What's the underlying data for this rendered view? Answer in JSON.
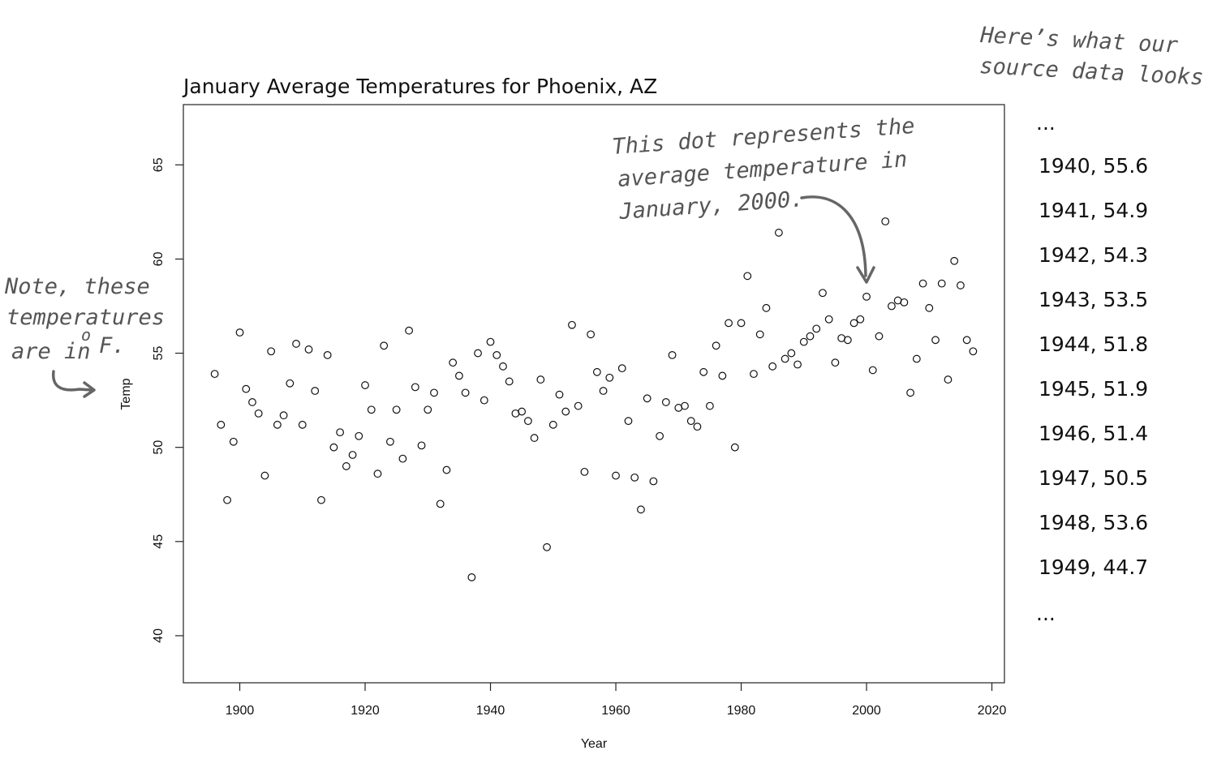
{
  "chart_data": {
    "type": "scatter",
    "title": "January Average Temperatures for Phoenix, AZ",
    "xlabel": "Year",
    "ylabel": "Temp",
    "xlim": [
      1891,
      2022
    ],
    "ylim": [
      37.5,
      68.2
    ],
    "xticks": [
      1900,
      1920,
      1940,
      1960,
      1980,
      2000,
      2020
    ],
    "yticks": [
      40,
      45,
      50,
      55,
      60,
      65
    ],
    "grid": false,
    "series": [
      {
        "marker": "open-circle",
        "points": [
          [
            1896,
            53.9
          ],
          [
            1897,
            51.2
          ],
          [
            1898,
            47.2
          ],
          [
            1899,
            50.3
          ],
          [
            1900,
            56.1
          ],
          [
            1901,
            53.1
          ],
          [
            1902,
            52.4
          ],
          [
            1903,
            51.8
          ],
          [
            1904,
            48.5
          ],
          [
            1905,
            55.1
          ],
          [
            1906,
            51.2
          ],
          [
            1907,
            51.7
          ],
          [
            1908,
            53.4
          ],
          [
            1909,
            55.5
          ],
          [
            1910,
            51.2
          ],
          [
            1911,
            55.2
          ],
          [
            1912,
            53.0
          ],
          [
            1913,
            47.2
          ],
          [
            1914,
            54.9
          ],
          [
            1915,
            50.0
          ],
          [
            1916,
            50.8
          ],
          [
            1917,
            49.0
          ],
          [
            1918,
            49.6
          ],
          [
            1919,
            50.6
          ],
          [
            1920,
            53.3
          ],
          [
            1921,
            52.0
          ],
          [
            1922,
            48.6
          ],
          [
            1923,
            55.4
          ],
          [
            1924,
            50.3
          ],
          [
            1925,
            52.0
          ],
          [
            1926,
            49.4
          ],
          [
            1927,
            56.2
          ],
          [
            1928,
            53.2
          ],
          [
            1929,
            50.1
          ],
          [
            1930,
            52.0
          ],
          [
            1931,
            52.9
          ],
          [
            1932,
            47.0
          ],
          [
            1933,
            48.8
          ],
          [
            1934,
            54.5
          ],
          [
            1935,
            53.8
          ],
          [
            1936,
            52.9
          ],
          [
            1937,
            43.1
          ],
          [
            1938,
            55.0
          ],
          [
            1939,
            52.5
          ],
          [
            1940,
            55.6
          ],
          [
            1941,
            54.9
          ],
          [
            1942,
            54.3
          ],
          [
            1943,
            53.5
          ],
          [
            1944,
            51.8
          ],
          [
            1945,
            51.9
          ],
          [
            1946,
            51.4
          ],
          [
            1947,
            50.5
          ],
          [
            1948,
            53.6
          ],
          [
            1949,
            44.7
          ],
          [
            1950,
            51.2
          ],
          [
            1951,
            52.8
          ],
          [
            1952,
            51.9
          ],
          [
            1953,
            56.5
          ],
          [
            1954,
            52.2
          ],
          [
            1955,
            48.7
          ],
          [
            1956,
            56.0
          ],
          [
            1957,
            54.0
          ],
          [
            1958,
            53.0
          ],
          [
            1959,
            53.7
          ],
          [
            1960,
            48.5
          ],
          [
            1961,
            54.2
          ],
          [
            1962,
            51.4
          ],
          [
            1963,
            48.4
          ],
          [
            1964,
            46.7
          ],
          [
            1965,
            52.6
          ],
          [
            1966,
            48.2
          ],
          [
            1967,
            50.6
          ],
          [
            1968,
            52.4
          ],
          [
            1969,
            54.9
          ],
          [
            1970,
            52.1
          ],
          [
            1971,
            52.2
          ],
          [
            1972,
            51.4
          ],
          [
            1973,
            51.1
          ],
          [
            1974,
            54.0
          ],
          [
            1975,
            52.2
          ],
          [
            1976,
            55.4
          ],
          [
            1977,
            53.8
          ],
          [
            1978,
            56.6
          ],
          [
            1979,
            50.0
          ],
          [
            1980,
            56.6
          ],
          [
            1981,
            59.1
          ],
          [
            1982,
            53.9
          ],
          [
            1983,
            56.0
          ],
          [
            1984,
            57.4
          ],
          [
            1985,
            54.3
          ],
          [
            1986,
            61.4
          ],
          [
            1987,
            54.7
          ],
          [
            1988,
            55.0
          ],
          [
            1989,
            54.4
          ],
          [
            1990,
            55.6
          ],
          [
            1991,
            55.9
          ],
          [
            1992,
            56.3
          ],
          [
            1993,
            58.2
          ],
          [
            1994,
            56.8
          ],
          [
            1995,
            54.5
          ],
          [
            1996,
            55.8
          ],
          [
            1997,
            55.7
          ],
          [
            1998,
            56.6
          ],
          [
            1999,
            56.8
          ],
          [
            2000,
            58.0
          ],
          [
            2001,
            54.1
          ],
          [
            2002,
            55.9
          ],
          [
            2003,
            62.0
          ],
          [
            2004,
            57.5
          ],
          [
            2005,
            57.8
          ],
          [
            2006,
            57.7
          ],
          [
            2007,
            52.9
          ],
          [
            2008,
            54.7
          ],
          [
            2009,
            58.7
          ],
          [
            2010,
            57.4
          ],
          [
            2011,
            55.7
          ],
          [
            2012,
            58.7
          ],
          [
            2013,
            53.6
          ],
          [
            2014,
            59.9
          ],
          [
            2015,
            58.6
          ],
          [
            2016,
            55.7
          ],
          [
            2017,
            55.1
          ]
        ]
      }
    ]
  },
  "annotations": {
    "units_note": [
      "Note, these",
      "temperatures",
      "are in",
      "o",
      "F."
    ],
    "dot_note": [
      "This dot represents the",
      "average temperature in",
      "January, 2000."
    ],
    "source_heading": [
      "Here’s what our",
      "source data looks like:"
    ]
  },
  "source_data": {
    "ellipsis_top": "...",
    "lines": [
      "1940, 55.6",
      "1941, 54.9",
      "1942, 54.3",
      "1943, 53.5",
      "1944, 51.8",
      "1945, 51.9",
      "1946, 51.4",
      "1947, 50.5",
      "1948, 53.6",
      "1949, 44.7"
    ],
    "ellipsis_bottom": "..."
  }
}
